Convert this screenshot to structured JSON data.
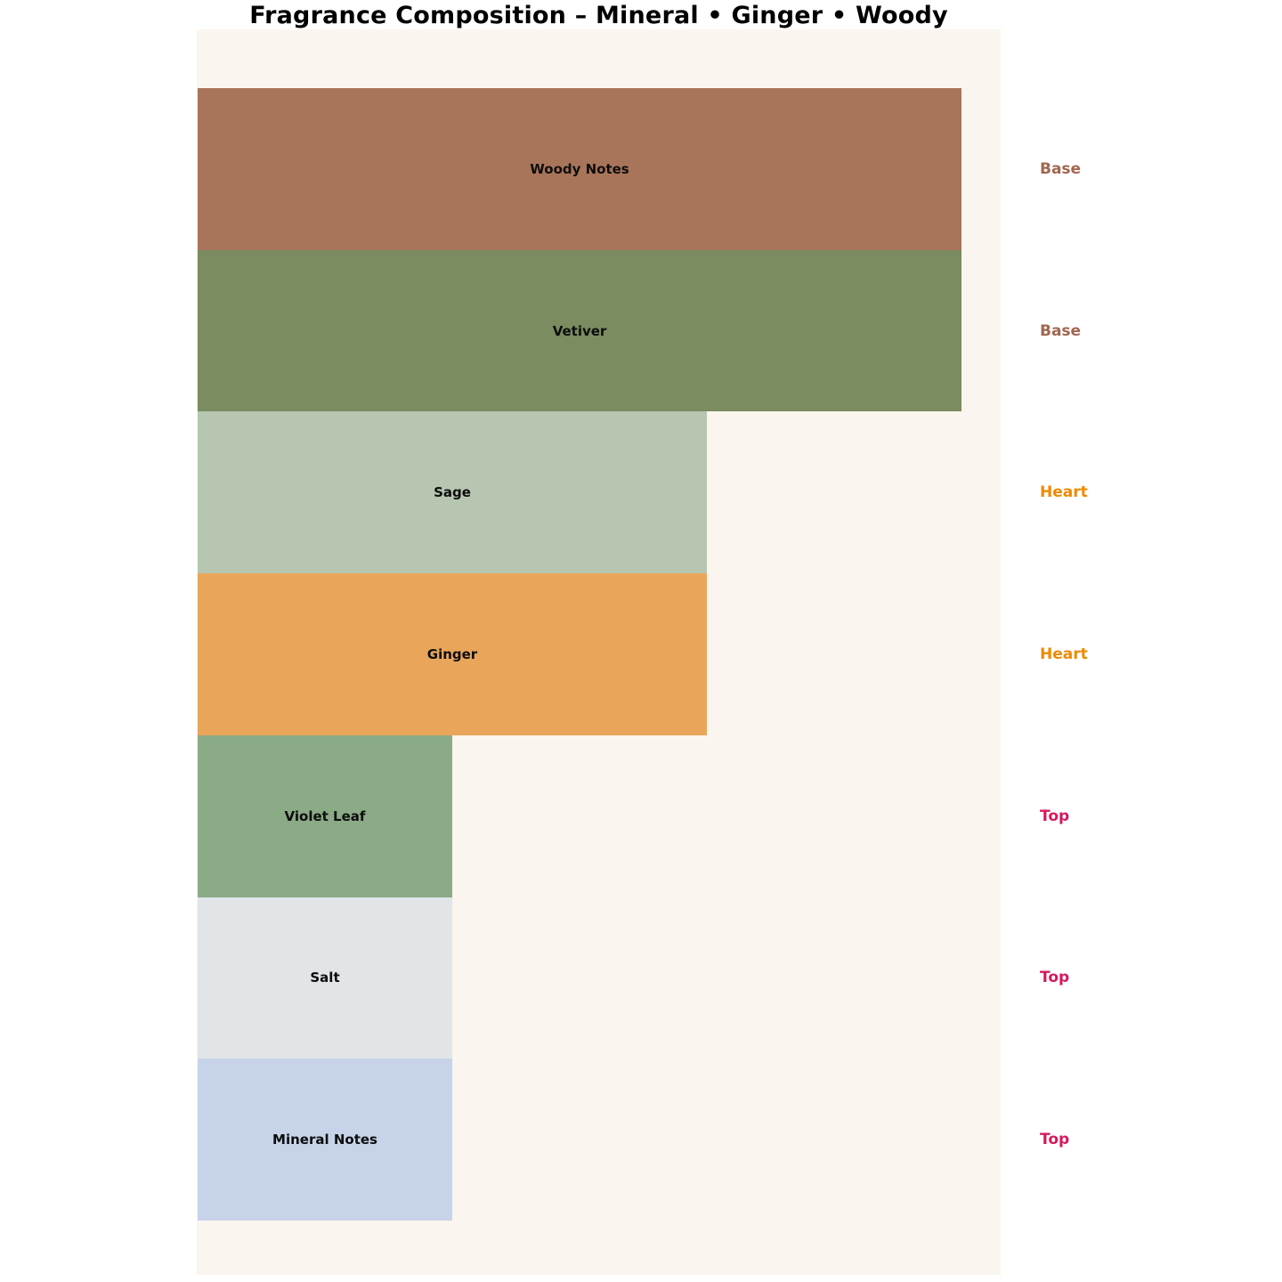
{
  "title": "Fragrance Composition – Mineral • Ginger • Woody",
  "colors": {
    "page_background": "#ffffff",
    "plot_background": "#faf5ee",
    "bar_label_text": "#0d0d0d",
    "base_tier": "#a2654e",
    "heart_tier": "#ee8a00",
    "top_tier": "#d6195e"
  },
  "chart_data": {
    "type": "bar",
    "orientation": "horizontal",
    "title": "Fragrance Composition – Mineral • Ginger • Woody",
    "xlabel": "",
    "ylabel": "",
    "grid": false,
    "legend": "none",
    "xlim": [
      0,
      3.16
    ],
    "categories": [
      "Woody Notes",
      "Vetiver",
      "Sage",
      "Ginger",
      "Violet Leaf",
      "Salt",
      "Mineral Notes"
    ],
    "values": [
      3,
      3,
      2,
      2,
      1,
      1,
      1
    ],
    "tiers": [
      "Base",
      "Base",
      "Heart",
      "Heart",
      "Top",
      "Top",
      "Top"
    ],
    "bars": [
      {
        "label": "Woody Notes",
        "value": 3,
        "color": "#a9755a",
        "tier": "Base",
        "tier_color": "#a2654e"
      },
      {
        "label": "Vetiver",
        "value": 3,
        "color": "#7a8c60",
        "tier": "Base",
        "tier_color": "#a2654e"
      },
      {
        "label": "Sage",
        "value": 2,
        "color": "#b6c6b0",
        "tier": "Heart",
        "tier_color": "#ee8a00"
      },
      {
        "label": "Ginger",
        "value": 2,
        "color": "#e9a65b",
        "tier": "Heart",
        "tier_color": "#ee8a00"
      },
      {
        "label": "Violet Leaf",
        "value": 1,
        "color": "#8bab86",
        "tier": "Top",
        "tier_color": "#d6195e"
      },
      {
        "label": "Salt",
        "value": 1,
        "color": "#e1e5e8",
        "tier": "Top",
        "tier_color": "#d6195e"
      },
      {
        "label": "Mineral Notes",
        "value": 1,
        "color": "#c7d3e8",
        "tier": "Top",
        "tier_color": "#d6195e"
      }
    ]
  }
}
